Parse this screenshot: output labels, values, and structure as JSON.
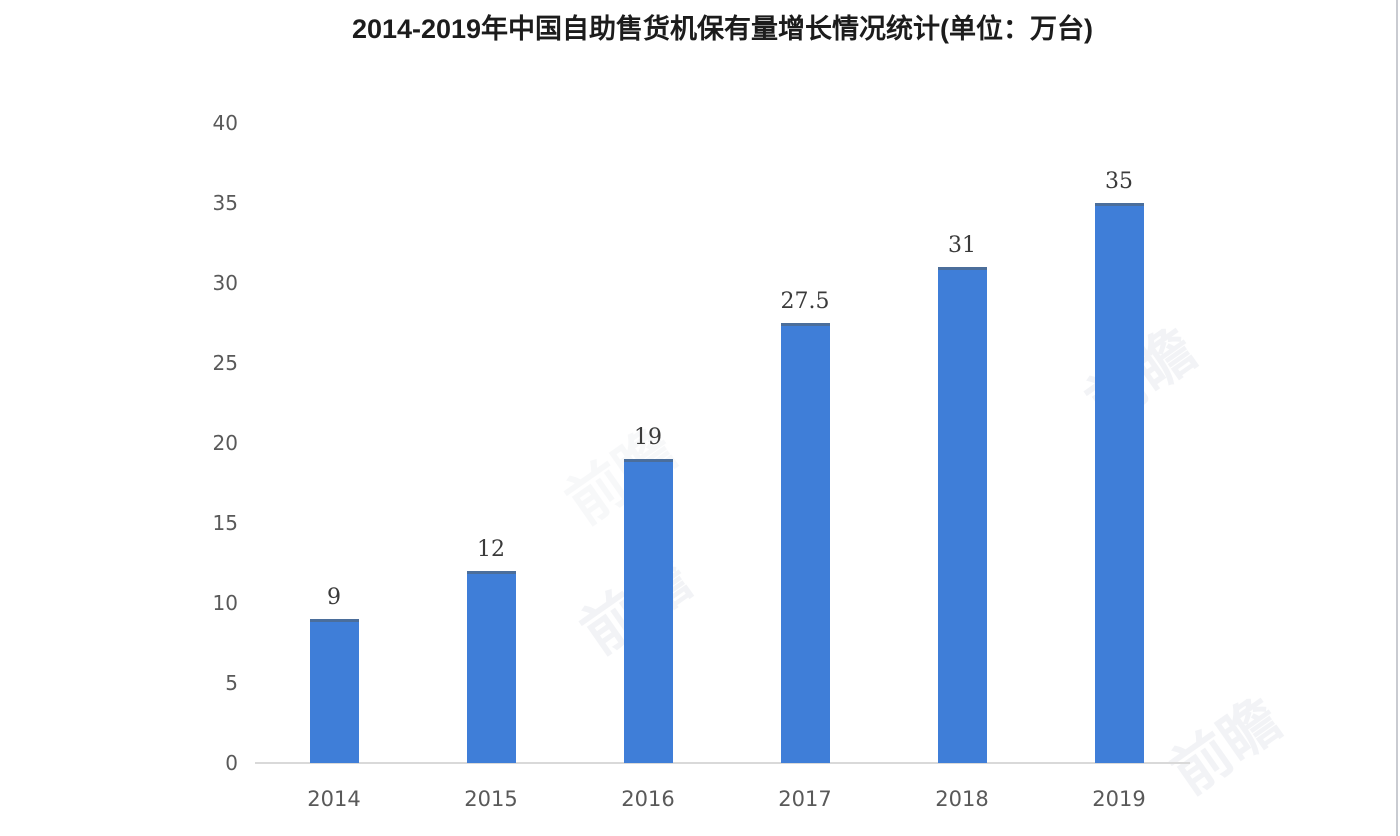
{
  "title": "2014-2019年中国自助售货机保有量增长情况统计(单位：万台)",
  "watermark": {
    "text": "前瞻"
  },
  "chart_data": {
    "type": "bar",
    "title": "2014-2019年中国自助售货机保有量增长情况统计(单位：万台)",
    "categories": [
      "2014",
      "2015",
      "2016",
      "2017",
      "2018",
      "2019"
    ],
    "values": [
      9,
      12,
      19,
      27.5,
      31,
      35
    ],
    "value_labels": [
      "9",
      "12",
      "19",
      "27.5",
      "31",
      "35"
    ],
    "series_name": "自助售货机保有量",
    "unit": "万台",
    "xlabel": "",
    "ylabel": "",
    "ylim": [
      0,
      40
    ],
    "yticks": [
      0,
      5,
      10,
      15,
      20,
      25,
      30,
      35,
      40
    ],
    "grid": false,
    "legend_position": "none",
    "bar_color": "#3f7ed8",
    "axis_line_color": "#d9d9d9",
    "tick_label_color": "#595959",
    "value_label_color": "#3a3a3a",
    "title_color": "#1c1c1c",
    "background_color": "#ffffff"
  }
}
